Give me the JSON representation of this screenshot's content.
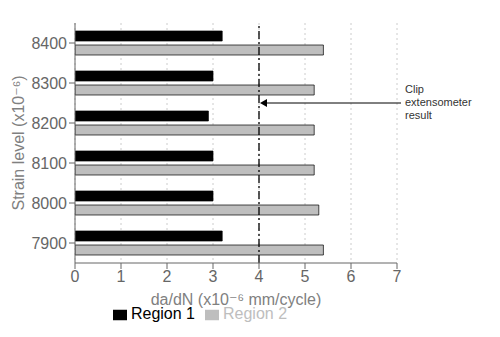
{
  "chart_data": {
    "type": "bar",
    "orientation": "horizontal",
    "categories": [
      "7900",
      "8000",
      "8100",
      "8200",
      "8300",
      "8400"
    ],
    "series": [
      {
        "name": "Region 1",
        "color": "#000000",
        "values": [
          3.2,
          3.0,
          3.0,
          2.9,
          3.0,
          3.2
        ]
      },
      {
        "name": "Region 2",
        "color": "#BEBEBE",
        "values": [
          5.4,
          5.3,
          5.2,
          5.2,
          5.2,
          5.4
        ]
      }
    ],
    "x_label": "da/dN (x10⁻⁶ mm/cycle)",
    "y_label": "Strain level (x10⁻⁶)",
    "xlim": [
      0,
      7
    ],
    "xticks": [
      0,
      1,
      2,
      3,
      4,
      5,
      6,
      7
    ],
    "grid": true,
    "legend": "bottom",
    "annotations": [
      {
        "text": "Clip\nextensometer\nresult",
        "x": 4.0
      }
    ]
  }
}
